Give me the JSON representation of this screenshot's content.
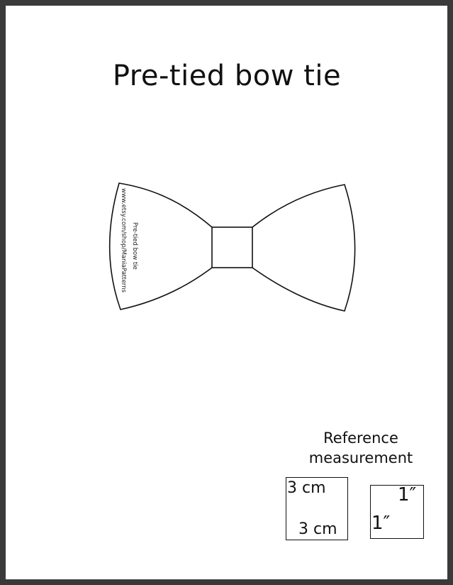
{
  "document": {
    "title": "Pre-tied bow tie"
  },
  "pattern": {
    "shop_url": "www.etsy.com/shop/ManiaPatterns",
    "piece_label": "Pre-tied bow tie"
  },
  "reference": {
    "heading_line1": "Reference",
    "heading_line2": "measurement",
    "metric_top": "3 cm",
    "metric_bottom": "3 cm",
    "imperial_top": "1″",
    "imperial_side": "1″"
  }
}
